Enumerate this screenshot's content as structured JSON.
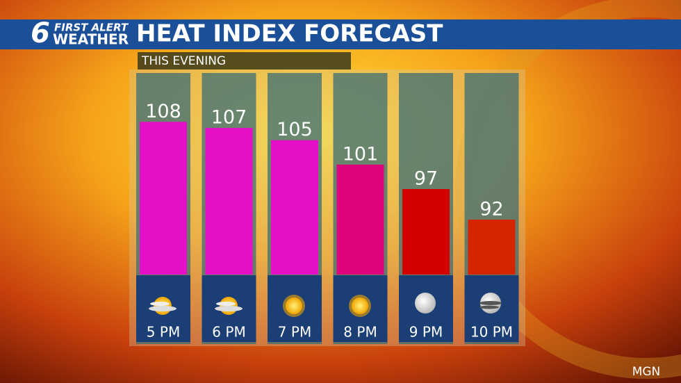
{
  "logo": {
    "number": "6",
    "line1": "FIRST ALERT",
    "line2": "WEATHER"
  },
  "watermark": "MGN",
  "chart_data": {
    "type": "bar",
    "title": "HEAT INDEX FORECAST",
    "subtitle": "THIS EVENING",
    "categories": [
      "5 PM",
      "6 PM",
      "7 PM",
      "8 PM",
      "9 PM",
      "10 PM"
    ],
    "values": [
      108,
      107,
      105,
      101,
      97,
      92
    ],
    "colors": [
      "#e60fc8",
      "#e60fc8",
      "#e60fc8",
      "#e0047c",
      "#d40000",
      "#d42400"
    ],
    "ylim": [
      83,
      116
    ]
  }
}
